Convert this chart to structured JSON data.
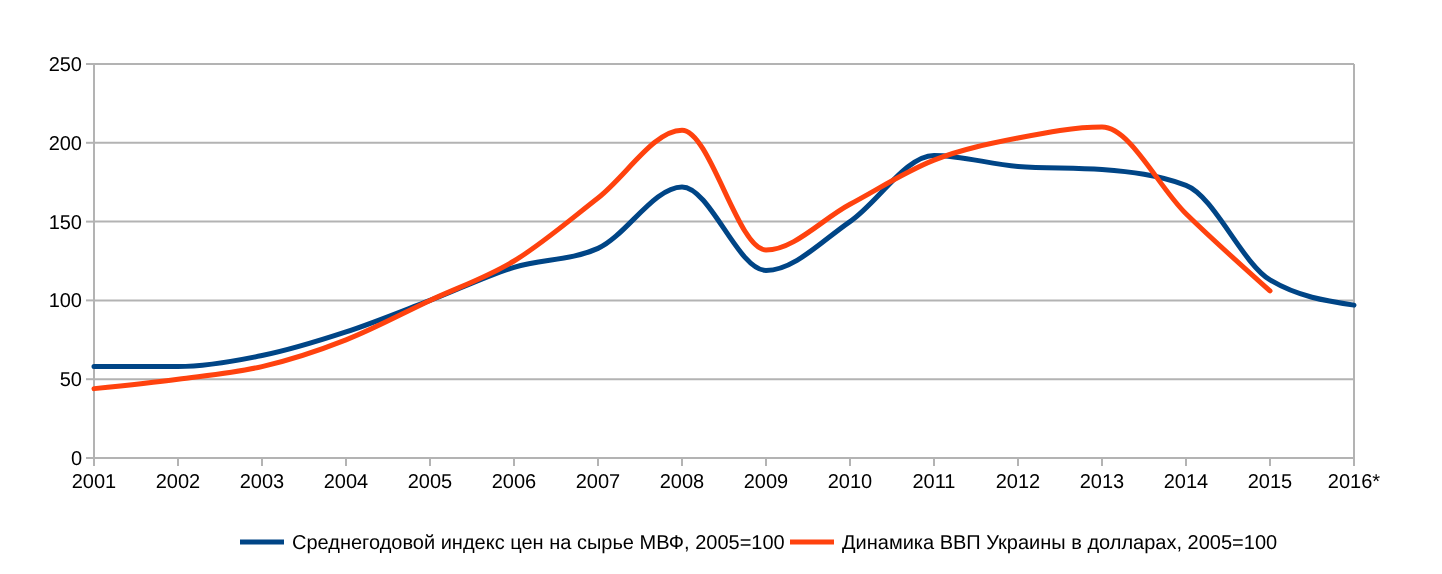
{
  "chart_data": {
    "type": "line",
    "categories": [
      "2001",
      "2002",
      "2003",
      "2004",
      "2005",
      "2006",
      "2007",
      "2008",
      "2009",
      "2010",
      "2011",
      "2012",
      "2013",
      "2014",
      "2015",
      "2016*"
    ],
    "series": [
      {
        "name": "Среднегодовой индекс цен на сырье МВФ, 2005=100",
        "color": "#004586",
        "values": [
          58,
          58,
          65,
          80,
          100,
          121,
          133,
          172,
          119,
          150,
          192,
          185,
          183,
          173,
          113,
          97
        ]
      },
      {
        "name": "Динамика ВВП Украины в долларах, 2005=100",
        "color": "#ff420e",
        "values": [
          44,
          50,
          58,
          75,
          100,
          125,
          165,
          208,
          132,
          161,
          189,
          203,
          210,
          155,
          106,
          null
        ]
      }
    ],
    "ylim": [
      0,
      250
    ],
    "yticks": [
      0,
      50,
      100,
      150,
      200,
      250
    ],
    "grid": "y",
    "legend": "bottom",
    "marker": "none",
    "line_style": "solid"
  }
}
